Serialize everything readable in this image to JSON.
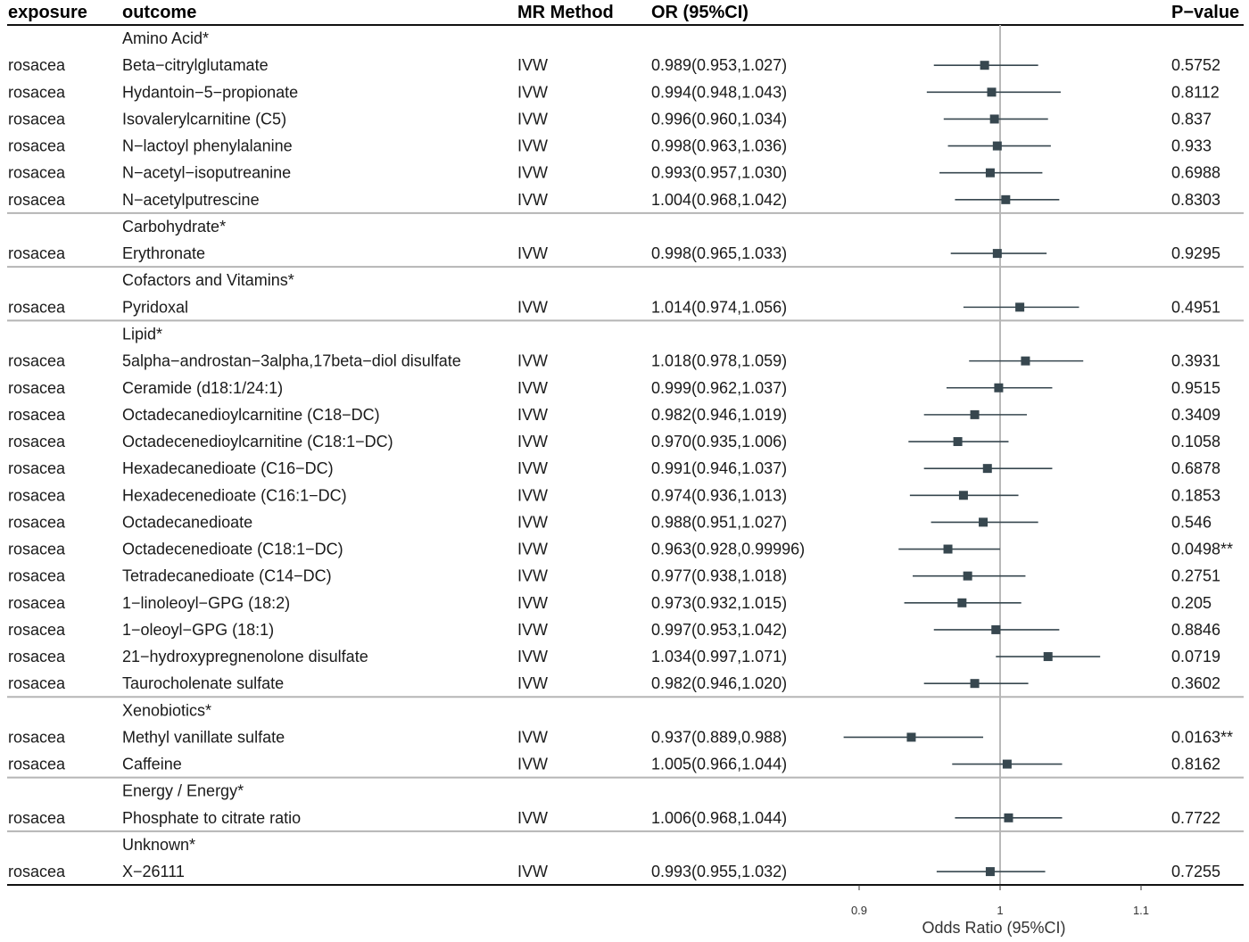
{
  "chart_data": {
    "type": "forest",
    "columns": {
      "exposure": "exposure",
      "outcome": "outcome",
      "method": "MR Method",
      "or": "OR (95%CI)",
      "pvalue": "P−value"
    },
    "xlabel": "Odds Ratio (95%CI)",
    "xlim": [
      0.875,
      1.175
    ],
    "xticks": [
      0.9,
      1,
      1.1
    ],
    "xtick_labels": [
      "0.9",
      "1",
      "1.1"
    ],
    "reference_line": 1,
    "marker_color": "#37474f",
    "groups": [
      {
        "category": "Amino Acid*",
        "rows": [
          {
            "exposure": "rosacea",
            "outcome": "Beta−citrylglutamate",
            "method": "IVW",
            "or_text": "0.989(0.953,1.027)",
            "or": 0.989,
            "lo": 0.953,
            "hi": 1.027,
            "p": "0.5752"
          },
          {
            "exposure": "rosacea",
            "outcome": "Hydantoin−5−propionate",
            "method": "IVW",
            "or_text": "0.994(0.948,1.043)",
            "or": 0.994,
            "lo": 0.948,
            "hi": 1.043,
            "p": "0.8112"
          },
          {
            "exposure": "rosacea",
            "outcome": "Isovalerylcarnitine (C5)",
            "method": "IVW",
            "or_text": "0.996(0.960,1.034)",
            "or": 0.996,
            "lo": 0.96,
            "hi": 1.034,
            "p": "0.837"
          },
          {
            "exposure": "rosacea",
            "outcome": "N−lactoyl phenylalanine",
            "method": "IVW",
            "or_text": "0.998(0.963,1.036)",
            "or": 0.998,
            "lo": 0.963,
            "hi": 1.036,
            "p": "0.933"
          },
          {
            "exposure": "rosacea",
            "outcome": "N−acetyl−isoputreanine",
            "method": "IVW",
            "or_text": "0.993(0.957,1.030)",
            "or": 0.993,
            "lo": 0.957,
            "hi": 1.03,
            "p": "0.6988"
          },
          {
            "exposure": "rosacea",
            "outcome": "N−acetylputrescine",
            "method": "IVW",
            "or_text": "1.004(0.968,1.042)",
            "or": 1.004,
            "lo": 0.968,
            "hi": 1.042,
            "p": "0.8303"
          }
        ]
      },
      {
        "category": "Carbohydrate*",
        "rows": [
          {
            "exposure": "rosacea",
            "outcome": "Erythronate",
            "method": "IVW",
            "or_text": "0.998(0.965,1.033)",
            "or": 0.998,
            "lo": 0.965,
            "hi": 1.033,
            "p": "0.9295"
          }
        ]
      },
      {
        "category": "Cofactors and Vitamins*",
        "rows": [
          {
            "exposure": "rosacea",
            "outcome": "Pyridoxal",
            "method": "IVW",
            "or_text": "1.014(0.974,1.056)",
            "or": 1.014,
            "lo": 0.974,
            "hi": 1.056,
            "p": "0.4951"
          }
        ]
      },
      {
        "category": "Lipid*",
        "rows": [
          {
            "exposure": "rosacea",
            "outcome": "5alpha−androstan−3alpha,17beta−diol disulfate",
            "method": "IVW",
            "or_text": "1.018(0.978,1.059)",
            "or": 1.018,
            "lo": 0.978,
            "hi": 1.059,
            "p": "0.3931"
          },
          {
            "exposure": "rosacea",
            "outcome": "Ceramide (d18:1/24:1)",
            "method": "IVW",
            "or_text": "0.999(0.962,1.037)",
            "or": 0.999,
            "lo": 0.962,
            "hi": 1.037,
            "p": "0.9515"
          },
          {
            "exposure": "rosacea",
            "outcome": "Octadecanedioylcarnitine (C18−DC)",
            "method": "IVW",
            "or_text": "0.982(0.946,1.019)",
            "or": 0.982,
            "lo": 0.946,
            "hi": 1.019,
            "p": "0.3409"
          },
          {
            "exposure": "rosacea",
            "outcome": "Octadecenedioylcarnitine (C18:1−DC)",
            "method": "IVW",
            "or_text": "0.970(0.935,1.006)",
            "or": 0.97,
            "lo": 0.935,
            "hi": 1.006,
            "p": "0.1058"
          },
          {
            "exposure": "rosacea",
            "outcome": "Hexadecanedioate (C16−DC)",
            "method": "IVW",
            "or_text": "0.991(0.946,1.037)",
            "or": 0.991,
            "lo": 0.946,
            "hi": 1.037,
            "p": "0.6878"
          },
          {
            "exposure": "rosacea",
            "outcome": "Hexadecenedioate (C16:1−DC)",
            "method": "IVW",
            "or_text": "0.974(0.936,1.013)",
            "or": 0.974,
            "lo": 0.936,
            "hi": 1.013,
            "p": "0.1853"
          },
          {
            "exposure": "rosacea",
            "outcome": "Octadecanedioate",
            "method": "IVW",
            "or_text": "0.988(0.951,1.027)",
            "or": 0.988,
            "lo": 0.951,
            "hi": 1.027,
            "p": "0.546"
          },
          {
            "exposure": "rosacea",
            "outcome": "Octadecenedioate (C18:1−DC)",
            "method": "IVW",
            "or_text": "0.963(0.928,0.99996)",
            "or": 0.963,
            "lo": 0.928,
            "hi": 0.99996,
            "p": "0.0498**"
          },
          {
            "exposure": "rosacea",
            "outcome": "Tetradecanedioate (C14−DC)",
            "method": "IVW",
            "or_text": "0.977(0.938,1.018)",
            "or": 0.977,
            "lo": 0.938,
            "hi": 1.018,
            "p": "0.2751"
          },
          {
            "exposure": "rosacea",
            "outcome": "1−linoleoyl−GPG (18:2)",
            "method": "IVW",
            "or_text": "0.973(0.932,1.015)",
            "or": 0.973,
            "lo": 0.932,
            "hi": 1.015,
            "p": "0.205"
          },
          {
            "exposure": "rosacea",
            "outcome": "1−oleoyl−GPG (18:1)",
            "method": "IVW",
            "or_text": "0.997(0.953,1.042)",
            "or": 0.997,
            "lo": 0.953,
            "hi": 1.042,
            "p": "0.8846"
          },
          {
            "exposure": "rosacea",
            "outcome": "21−hydroxypregnenolone disulfate",
            "method": "IVW",
            "or_text": "1.034(0.997,1.071)",
            "or": 1.034,
            "lo": 0.997,
            "hi": 1.071,
            "p": "0.0719"
          },
          {
            "exposure": "rosacea",
            "outcome": "Taurocholenate sulfate",
            "method": "IVW",
            "or_text": "0.982(0.946,1.020)",
            "or": 0.982,
            "lo": 0.946,
            "hi": 1.02,
            "p": "0.3602"
          }
        ]
      },
      {
        "category": "Xenobiotics*",
        "rows": [
          {
            "exposure": "rosacea",
            "outcome": "Methyl vanillate sulfate",
            "method": "IVW",
            "or_text": "0.937(0.889,0.988)",
            "or": 0.937,
            "lo": 0.889,
            "hi": 0.988,
            "p": "0.0163**"
          },
          {
            "exposure": "rosacea",
            "outcome": "Caffeine",
            "method": "IVW",
            "or_text": "1.005(0.966,1.044)",
            "or": 1.005,
            "lo": 0.966,
            "hi": 1.044,
            "p": "0.8162"
          }
        ]
      },
      {
        "category": "Energy / Energy*",
        "rows": [
          {
            "exposure": "rosacea",
            "outcome": "Phosphate to citrate ratio",
            "method": "IVW",
            "or_text": "1.006(0.968,1.044)",
            "or": 1.006,
            "lo": 0.968,
            "hi": 1.044,
            "p": "0.7722"
          }
        ]
      },
      {
        "category": "Unknown*",
        "rows": [
          {
            "exposure": "rosacea",
            "outcome": "X−26111",
            "method": "IVW",
            "or_text": "0.993(0.955,1.032)",
            "or": 0.993,
            "lo": 0.955,
            "hi": 1.032,
            "p": "0.7255"
          }
        ]
      }
    ]
  }
}
